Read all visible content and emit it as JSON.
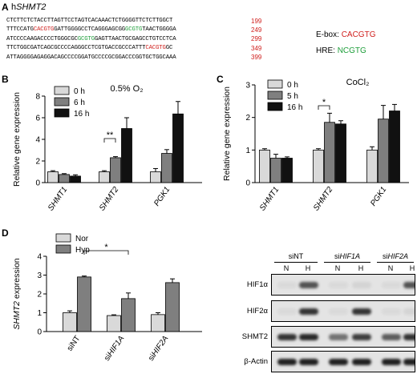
{
  "panel_a": {
    "label": "A",
    "gene_prefix": "h",
    "gene_name": "SHMT2",
    "sequence_lines": [
      {
        "parts": [
          {
            "t": "CTCTTCTCTACCTTAGTTCCTAGTCACAAACTCTGGGGTTCTCTTGGCT",
            "c": ""
          }
        ],
        "num": "199"
      },
      {
        "parts": [
          {
            "t": "TTTCCATG",
            "c": ""
          },
          {
            "t": "CACGTG",
            "c": "red"
          },
          {
            "t": "GATTGGGGCCTCAGGGAGCGG",
            "c": ""
          },
          {
            "t": "GCGTG",
            "c": "green"
          },
          {
            "t": "TAACTGGGGA",
            "c": ""
          }
        ],
        "num": "249"
      },
      {
        "parts": [
          {
            "t": "ATCCCCAAGACCCCTGGGCGC",
            "c": ""
          },
          {
            "t": "GCGTG",
            "c": "green"
          },
          {
            "t": "GAGTTAACTGCGAGCCTGTCCTCA",
            "c": ""
          }
        ],
        "num": "299"
      },
      {
        "parts": [
          {
            "t": "TTCTGGCGATCAGCGCCCCAGGGCCTCGTGACCGCCCATTT",
            "c": ""
          },
          {
            "t": "CACGTG",
            "c": "red"
          },
          {
            "t": "GC",
            "c": ""
          }
        ],
        "num": "349"
      },
      {
        "parts": [
          {
            "t": "ATTAGGGGAGAGGACAGCCCCGGATGCCCCGCGGACCCGGTGCTGGCAAA",
            "c": ""
          }
        ],
        "num": "399"
      }
    ],
    "ebox_label": "E-box:",
    "ebox_seq": "CACGTG",
    "hre_label": "HRE:",
    "hre_seq": "NCGTG"
  },
  "panel_b": {
    "label": "B",
    "title": "0.5% O₂"
  },
  "panel_c": {
    "label": "C",
    "title": "CoCl₂"
  },
  "panel_d": {
    "label": "D"
  },
  "colors": {
    "light": "#d9d9d9",
    "mid": "#7f7f7f",
    "dark": "#111111",
    "red": "#d0201e",
    "green": "#1e9e3a"
  },
  "chart_data": [
    {
      "type": "bar",
      "panel": "B",
      "title": "0.5% O₂",
      "ylabel": "Relative gene expression",
      "categories": [
        "SHMT1",
        "SHMT2",
        "PGK1"
      ],
      "ylim": [
        0,
        8
      ],
      "yticks": [
        "0",
        "2",
        "4",
        "6",
        "8"
      ],
      "series": [
        {
          "name": "0 h",
          "values": [
            1.0,
            1.0,
            1.0
          ],
          "errors": [
            0.1,
            0.1,
            0.3
          ]
        },
        {
          "name": "6 h",
          "values": [
            0.75,
            2.3,
            2.7
          ],
          "errors": [
            0.08,
            0.1,
            0.35
          ]
        },
        {
          "name": "16 h",
          "values": [
            0.6,
            5.0,
            6.35
          ],
          "errors": [
            0.12,
            1.0,
            1.15
          ]
        }
      ],
      "annotations": [
        {
          "text": "**",
          "category": "SHMT2"
        }
      ],
      "legend": "top-left"
    },
    {
      "type": "bar",
      "panel": "C",
      "title": "CoCl₂",
      "ylabel": "Relative gene expression",
      "categories": [
        "SHMT1",
        "SHMT2",
        "PGK1"
      ],
      "ylim": [
        0,
        3
      ],
      "yticks": [
        "0",
        "1",
        "2",
        "3"
      ],
      "series": [
        {
          "name": "0 h",
          "values": [
            1.0,
            1.0,
            1.0
          ],
          "errors": [
            0.04,
            0.04,
            0.1
          ]
        },
        {
          "name": "5 h",
          "values": [
            0.75,
            1.85,
            1.95
          ],
          "errors": [
            0.12,
            0.28,
            0.42
          ]
        },
        {
          "name": "16 h",
          "values": [
            0.75,
            1.8,
            2.2
          ],
          "errors": [
            0.04,
            0.1,
            0.2
          ]
        }
      ],
      "annotations": [
        {
          "text": "*",
          "category": "SHMT2"
        }
      ],
      "legend": "top-left"
    },
    {
      "type": "bar",
      "panel": "D",
      "ylabel": "SHMT2 expression",
      "categories": [
        "siNT",
        "siHIF1A",
        "siHIF2A"
      ],
      "ylim": [
        0,
        4
      ],
      "yticks": [
        "0",
        "1",
        "2",
        "3",
        "4"
      ],
      "series": [
        {
          "name": "Nor",
          "values": [
            1.0,
            0.85,
            0.9
          ],
          "errors": [
            0.1,
            0.04,
            0.1
          ]
        },
        {
          "name": "Hyp",
          "values": [
            2.9,
            1.75,
            2.6
          ],
          "errors": [
            0.05,
            0.3,
            0.2
          ]
        }
      ],
      "annotations": [
        {
          "text": "*",
          "between": [
            "siNT",
            "siHIF1A"
          ]
        }
      ],
      "legend": "top-left"
    }
  ],
  "blot": {
    "group_labels": [
      "siNT",
      "siHIF1A",
      "siHIF2A"
    ],
    "lane_labels": [
      "N",
      "H",
      "N",
      "H",
      "N",
      "H"
    ],
    "rows": [
      {
        "label": "HIF1α",
        "intensities": [
          0.05,
          0.7,
          0.05,
          0.08,
          0.05,
          0.7
        ]
      },
      {
        "label": "HIF2α",
        "intensities": [
          0.05,
          0.85,
          0.05,
          0.85,
          0.05,
          0.08
        ]
      },
      {
        "label": "SHMT2",
        "intensities": [
          0.85,
          0.9,
          0.55,
          0.8,
          0.65,
          0.85
        ]
      },
      {
        "label": "β-Actin",
        "intensities": [
          0.95,
          0.95,
          0.95,
          0.95,
          0.95,
          0.95
        ]
      }
    ]
  }
}
